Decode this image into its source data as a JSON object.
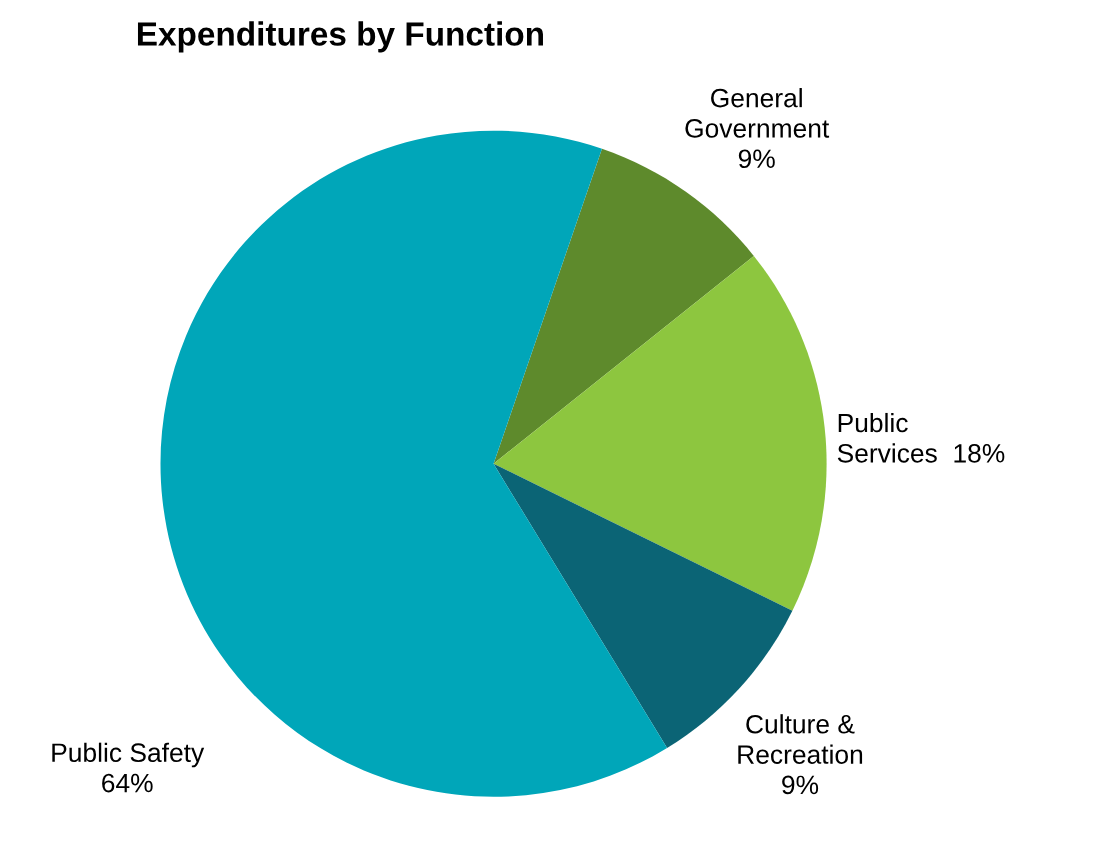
{
  "chart_data": {
    "type": "pie",
    "title": "Expenditures by Function",
    "categories": [
      "General\nGovernment",
      "Public\nServices",
      "Culture &\nRecreation",
      "Public Safety"
    ],
    "values": [
      9,
      18,
      9,
      64
    ],
    "value_labels": [
      "9%",
      "18%",
      "9%",
      "64%"
    ],
    "colors": [
      "#5e8a2c",
      "#8dc63f",
      "#0b6475",
      "#00a6b9"
    ]
  }
}
